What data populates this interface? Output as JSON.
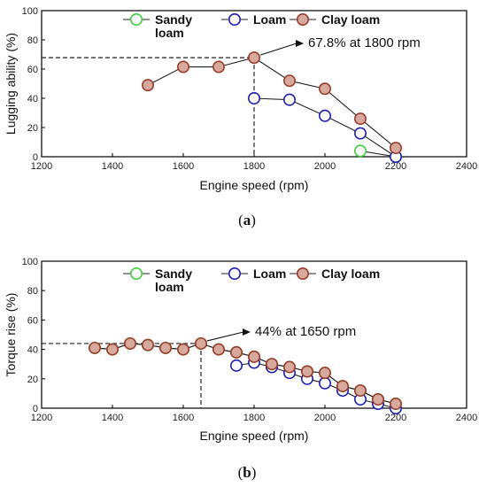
{
  "colors": {
    "sandy_loam": "#3ecf3e",
    "loam": "#1c1cb4",
    "clay_loam": "#9a3b2b",
    "clay_loam_fill": "#d6a99c",
    "axis": "#000000"
  },
  "chart_data": [
    {
      "type": "line",
      "panel_label": "a",
      "xlabel": "Engine speed (rpm)",
      "ylabel": "Lugging ability (%)",
      "xlim": [
        1200,
        2400
      ],
      "ylim": [
        0,
        100
      ],
      "xticks": [
        1200,
        1400,
        1600,
        1800,
        2000,
        2200,
        2400
      ],
      "yticks": [
        0,
        20,
        40,
        60,
        80,
        100
      ],
      "legend": {
        "position": "top",
        "entries": [
          {
            "key": "sandy_loam",
            "label_lines": [
              "Sandy",
              "loam"
            ]
          },
          {
            "key": "loam",
            "label_lines": [
              "Loam"
            ]
          },
          {
            "key": "clay_loam",
            "label_lines": [
              "Clay loam"
            ]
          }
        ]
      },
      "series": [
        {
          "key": "sandy_loam",
          "name": "Sandy loam",
          "x": [
            2100,
            2200
          ],
          "y": [
            4,
            0
          ]
        },
        {
          "key": "loam",
          "name": "Loam",
          "x": [
            1800,
            1900,
            2000,
            2100,
            2200
          ],
          "y": [
            40,
            39,
            28,
            16,
            0
          ]
        },
        {
          "key": "clay_loam",
          "name": "Clay loam",
          "x": [
            1500,
            1600,
            1700,
            1800,
            1900,
            2000,
            2100,
            2200
          ],
          "y": [
            49,
            61.5,
            61.5,
            67.8,
            52,
            46.5,
            26,
            6
          ]
        }
      ],
      "annotation": {
        "text": "67.8% at 1800 rpm",
        "x": 1800,
        "y": 67.8
      }
    },
    {
      "type": "line",
      "panel_label": "b",
      "xlabel": "Engine speed (rpm)",
      "ylabel": "Torque rise (%)",
      "xlim": [
        1200,
        2400
      ],
      "ylim": [
        0,
        100
      ],
      "xticks": [
        1200,
        1400,
        1600,
        1800,
        2000,
        2200,
        2400
      ],
      "yticks": [
        0,
        20,
        40,
        60,
        80,
        100
      ],
      "legend": {
        "position": "top",
        "entries": [
          {
            "key": "sandy_loam",
            "label_lines": [
              "Sandy",
              "loam"
            ]
          },
          {
            "key": "loam",
            "label_lines": [
              "Loam"
            ]
          },
          {
            "key": "clay_loam",
            "label_lines": [
              "Clay loam"
            ]
          }
        ]
      },
      "series": [
        {
          "key": "sandy_loam",
          "name": "Sandy loam",
          "x": [
            1350,
            1400,
            1450,
            1500,
            1550,
            1600,
            1650,
            1700,
            1750,
            1800,
            1850,
            1900,
            1950,
            2000,
            2050,
            2100,
            2150,
            2200
          ],
          "y": [
            41,
            40,
            44,
            43,
            41,
            40,
            44,
            40,
            38,
            35,
            30,
            28,
            25,
            24,
            15,
            12,
            6,
            3
          ]
        },
        {
          "key": "loam",
          "name": "Loam",
          "x": [
            1750,
            1800,
            1850,
            1900,
            1950,
            2000,
            2050,
            2100,
            2150,
            2200
          ],
          "y": [
            29,
            31,
            28,
            24,
            20,
            17,
            12,
            6,
            3,
            0
          ]
        },
        {
          "key": "clay_loam",
          "name": "Clay loam",
          "x": [
            1350,
            1400,
            1450,
            1500,
            1550,
            1600,
            1650,
            1700,
            1750,
            1800,
            1850,
            1900,
            1950,
            2000,
            2050,
            2100,
            2150,
            2200
          ],
          "y": [
            41,
            40,
            44,
            43,
            41,
            40,
            44,
            40,
            38,
            35,
            30,
            28,
            25,
            24,
            15,
            12,
            6,
            3
          ]
        }
      ],
      "annotation": {
        "text": "44% at 1650 rpm",
        "x": 1650,
        "y": 44
      }
    }
  ]
}
